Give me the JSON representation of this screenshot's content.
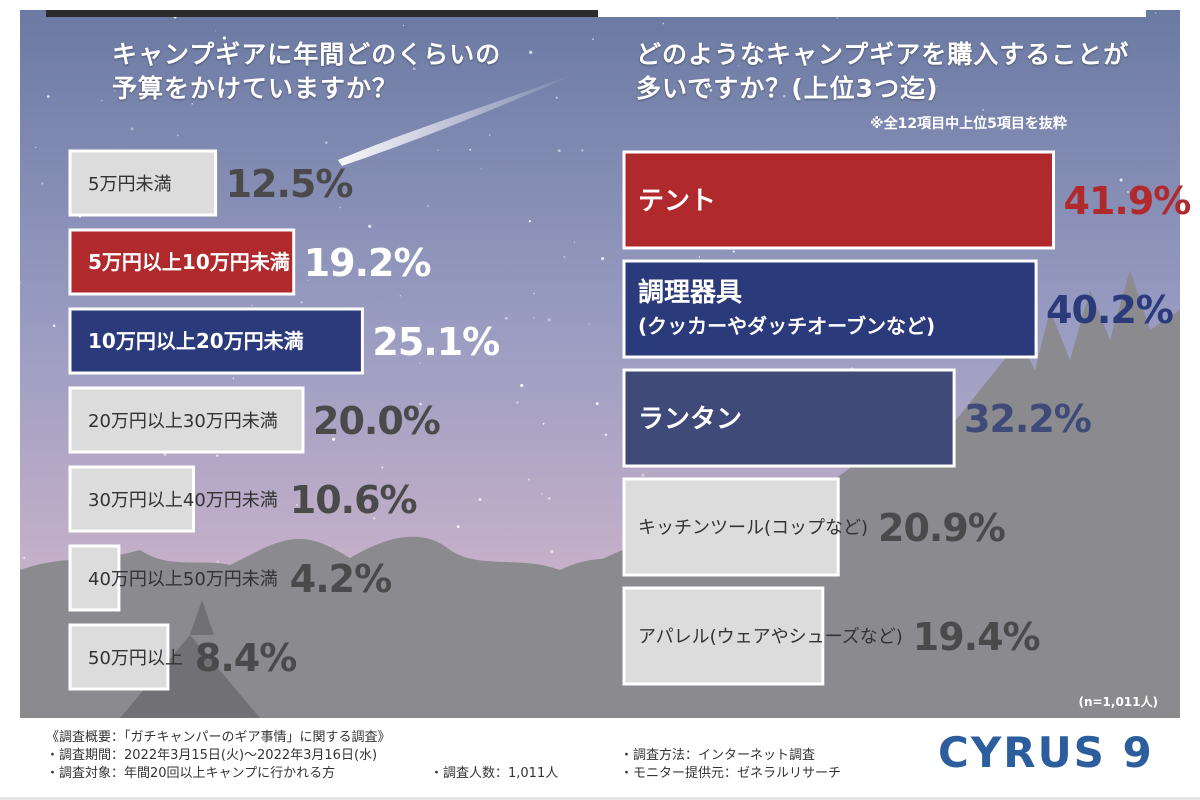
{
  "left_question": {
    "line1": "キャンプギアに年間どのくらいの",
    "line2": "予算をかけていますか？"
  },
  "right_question": {
    "line1": "どのようなキャンプギアを購入することが",
    "line2": "多いですか？(上位3つ迄)"
  },
  "note": "※全12項目中上位5項目を抜粋",
  "sample_size": "(n=1,011人)",
  "colors": {
    "red": "#b0292c",
    "navy": "#2b3a7a",
    "slate": "#3f4a78",
    "gray": "#dcdcdc",
    "label_dark": "#333333",
    "value_dark": "#4a4a4a",
    "value_light": "#ffffff"
  },
  "chart_data": [
    {
      "type": "bar",
      "orientation": "horizontal",
      "title": "キャンプギアに年間どのくらいの予算をかけていますか？",
      "categories": [
        "5万円未満",
        "5万円以上10万円未満",
        "10万円以上20万円未満",
        "20万円以上30万円未満",
        "30万円以上40万円未満",
        "40万円以上50万円未満",
        "50万円以上"
      ],
      "values": [
        12.5,
        19.2,
        25.1,
        20.0,
        10.6,
        4.2,
        8.4
      ],
      "value_labels": [
        "12.5%",
        "19.2%",
        "25.1%",
        "20.0%",
        "10.6%",
        "4.2%",
        "8.4%"
      ],
      "highlight": [
        "gray",
        "red",
        "navy",
        "gray",
        "gray",
        "gray",
        "gray"
      ],
      "unit": "%"
    },
    {
      "type": "bar",
      "orientation": "horizontal",
      "title": "どのようなキャンプギアを購入することが多いですか？(上位3つ迄)",
      "categories": [
        [
          "テント"
        ],
        [
          "調理器具",
          "(クッカーやダッチオーブンなど)"
        ],
        [
          "ランタン"
        ],
        [
          "キッチンツール(コップなど)"
        ],
        [
          "アパレル(ウェアやシューズなど)"
        ]
      ],
      "values": [
        41.9,
        40.2,
        32.2,
        20.9,
        19.4
      ],
      "value_labels": [
        "41.9%",
        "40.2%",
        "32.2%",
        "20.9%",
        "19.4%"
      ],
      "highlight": [
        "red",
        "navy",
        "slate",
        "gray",
        "gray"
      ],
      "unit": "%"
    }
  ],
  "footer": {
    "survey_title": "《調査概要：「ガチキャンパーのギア事情」に関する調査》",
    "period": "・調査期間：2022年3月15日(火)～2022年3月16日(水)",
    "target": "・調査対象：年間20回以上キャンプに行かれる方",
    "count": "・調査人数：1,011人",
    "method": "・調査方法：インターネット調査",
    "monitor": "・モニター提供元：ゼネラルリサーチ",
    "logo": "CYRUS 9"
  }
}
